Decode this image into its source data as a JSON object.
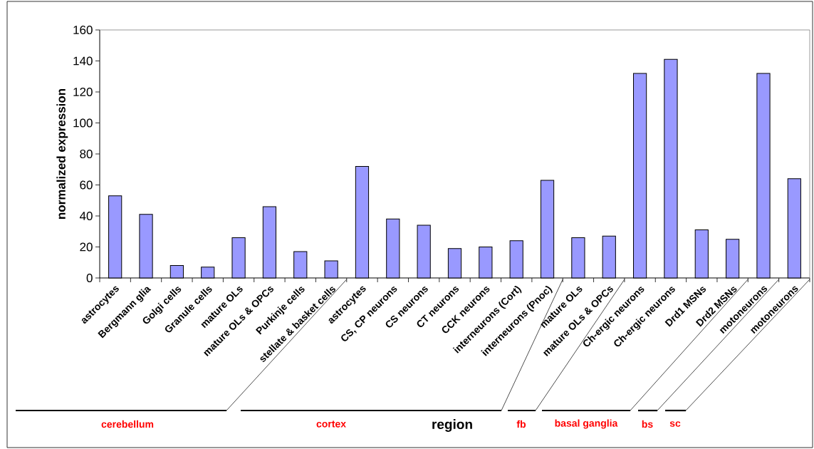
{
  "chart_data": {
    "type": "bar",
    "categories": [
      "astrocytes",
      "Bergmann glia",
      "Golgi cells",
      "Granule cells",
      "mature OLs",
      "mature OLs & OPCs",
      "Purkinje cells",
      "stellate & basket cells",
      "astrocytes",
      "CS, CP neurons",
      "CS neurons",
      "CT neurons",
      "CCK neurons",
      "interneurons (Cort)",
      "interneurons (Pnoc)",
      "mature OLs",
      "mature OLs & OPCs",
      "Ch-ergic neurons",
      "Ch-ergic neurons",
      "Drd1 MSNs",
      "Drd2 MSNs",
      "motoneurons",
      "motoneurons"
    ],
    "values": [
      53,
      41,
      8,
      7,
      26,
      46,
      17,
      11,
      72,
      38,
      34,
      19,
      20,
      24,
      63,
      26,
      27,
      132,
      141,
      31,
      25,
      132,
      64
    ],
    "color": "#9999ff",
    "ylabel": "normalized expression",
    "xlabel": "region",
    "ylim": [
      0,
      160
    ],
    "yticks": [
      0,
      20,
      40,
      60,
      80,
      100,
      120,
      140,
      160
    ],
    "annotations": [
      "cerebellum",
      "cortex",
      "fb",
      "basal ganglia",
      "bs",
      "sc"
    ]
  }
}
